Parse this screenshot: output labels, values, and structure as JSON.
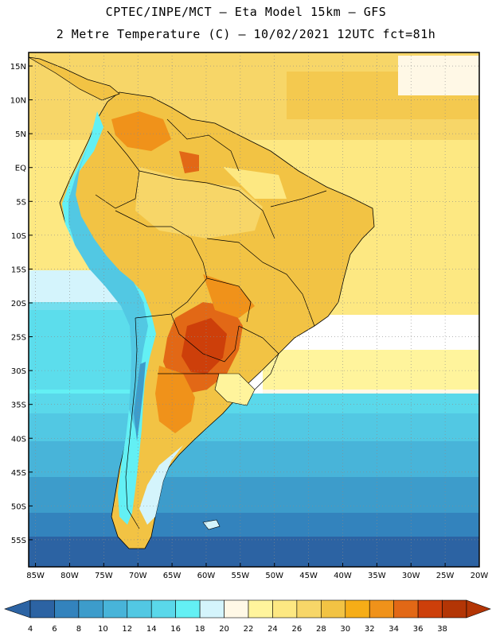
{
  "header": {
    "line1": "CPTEC/INPE/MCT —  Eta Model 15km — GFS",
    "line2": "2 Metre Temperature (C) — 10/02/2021 12UTC fct=81h"
  },
  "map": {
    "region": "South America",
    "lon_range": [
      -86,
      -20
    ],
    "lat_range": [
      -59,
      17
    ],
    "lat_ticks": [
      "15N",
      "10N",
      "5N",
      "EQ",
      "5S",
      "10S",
      "15S",
      "20S",
      "25S",
      "30S",
      "35S",
      "40S",
      "45S",
      "50S",
      "55S"
    ],
    "lat_values": [
      15,
      10,
      5,
      0,
      -5,
      -10,
      -15,
      -20,
      -25,
      -30,
      -35,
      -40,
      -45,
      -50,
      -55
    ],
    "lon_ticks": [
      "85W",
      "80W",
      "75W",
      "70W",
      "65W",
      "60W",
      "55W",
      "50W",
      "45W",
      "40W",
      "35W",
      "30W",
      "25W",
      "20W"
    ],
    "lon_values": [
      -85,
      -80,
      -75,
      -70,
      -65,
      -60,
      -55,
      -50,
      -45,
      -40,
      -35,
      -30,
      -25,
      -20
    ]
  },
  "colorbar": {
    "labels": [
      "4",
      "6",
      "8",
      "10",
      "12",
      "14",
      "16",
      "18",
      "20",
      "22",
      "24",
      "26",
      "28",
      "30",
      "32",
      "34",
      "36",
      "38"
    ],
    "colors": [
      "#2c63a3",
      "#3383bd",
      "#3d9ccb",
      "#48b4d9",
      "#52c8e3",
      "#5ad8ea",
      "#63f0f4",
      "#d4f4fc",
      "#fff8e6",
      "#fff49c",
      "#fde882",
      "#f7d668",
      "#f2c344",
      "#f6ad17",
      "#f0921a",
      "#e26816",
      "#cd3f0a",
      "#b33505"
    ]
  }
}
